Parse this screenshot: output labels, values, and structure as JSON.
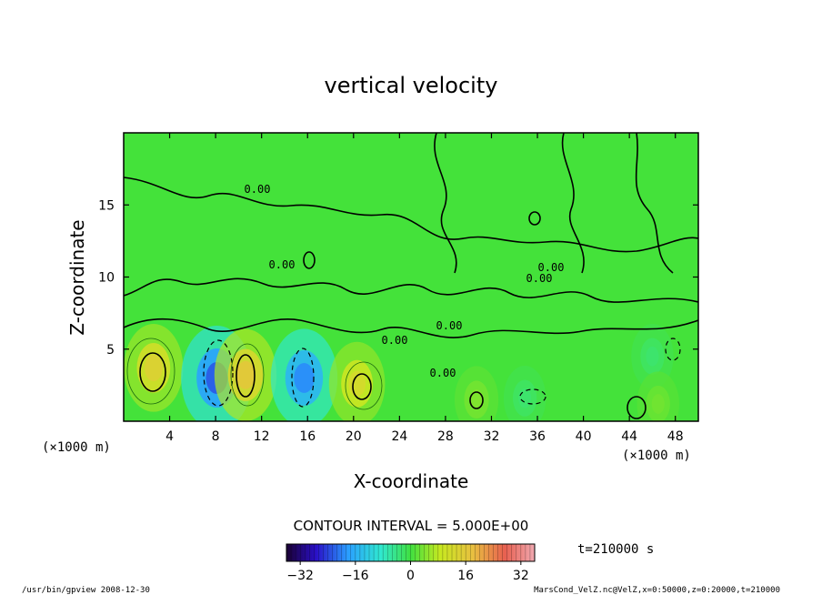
{
  "chart_data": {
    "type": "heatmap",
    "title": "vertical velocity",
    "xlabel": "X-coordinate",
    "ylabel": "Z-coordinate",
    "x_unit": "(×1000 m)",
    "y_unit": "(×1000 m)",
    "xlim": [
      0,
      50
    ],
    "ylim": [
      0,
      20
    ],
    "x_ticks": [
      "4",
      "8",
      "12",
      "16",
      "20",
      "24",
      "28",
      "32",
      "36",
      "40",
      "44",
      "48"
    ],
    "y_ticks": [
      "5",
      "10",
      "15"
    ],
    "contour_interval": "CONTOUR INTERVAL = 5.000E+00",
    "contour_labels": [
      "0.00",
      "0.00",
      "0.00",
      "0.00",
      "0.00",
      "0.00",
      "0.00"
    ],
    "colorbar": {
      "ticks": [
        "−32",
        "−16",
        "0",
        "16",
        "32"
      ],
      "range": [
        -36,
        36
      ]
    },
    "time_label": "t=210000 s",
    "features": [
      {
        "x": 2.6,
        "z": 3.7,
        "value": 14
      },
      {
        "x": 8.1,
        "z": 3.0,
        "value": -22
      },
      {
        "x": 10.6,
        "z": 3.2,
        "value": 16
      },
      {
        "x": 15.7,
        "z": 3.0,
        "value": -19
      },
      {
        "x": 20.3,
        "z": 2.6,
        "value": 12
      },
      {
        "x": 30.7,
        "z": 1.5,
        "value": 4
      },
      {
        "x": 34.9,
        "z": 1.6,
        "value": -3
      },
      {
        "x": 46.0,
        "z": 4.5,
        "value": -3
      },
      {
        "x": 46.5,
        "z": 1.2,
        "value": 3
      }
    ]
  },
  "footer": {
    "left": "/usr/bin/gpview   2008-12-30",
    "right": "MarsCond_VelZ.nc@VelZ,x=0:50000,z=0:20000,t=210000"
  }
}
